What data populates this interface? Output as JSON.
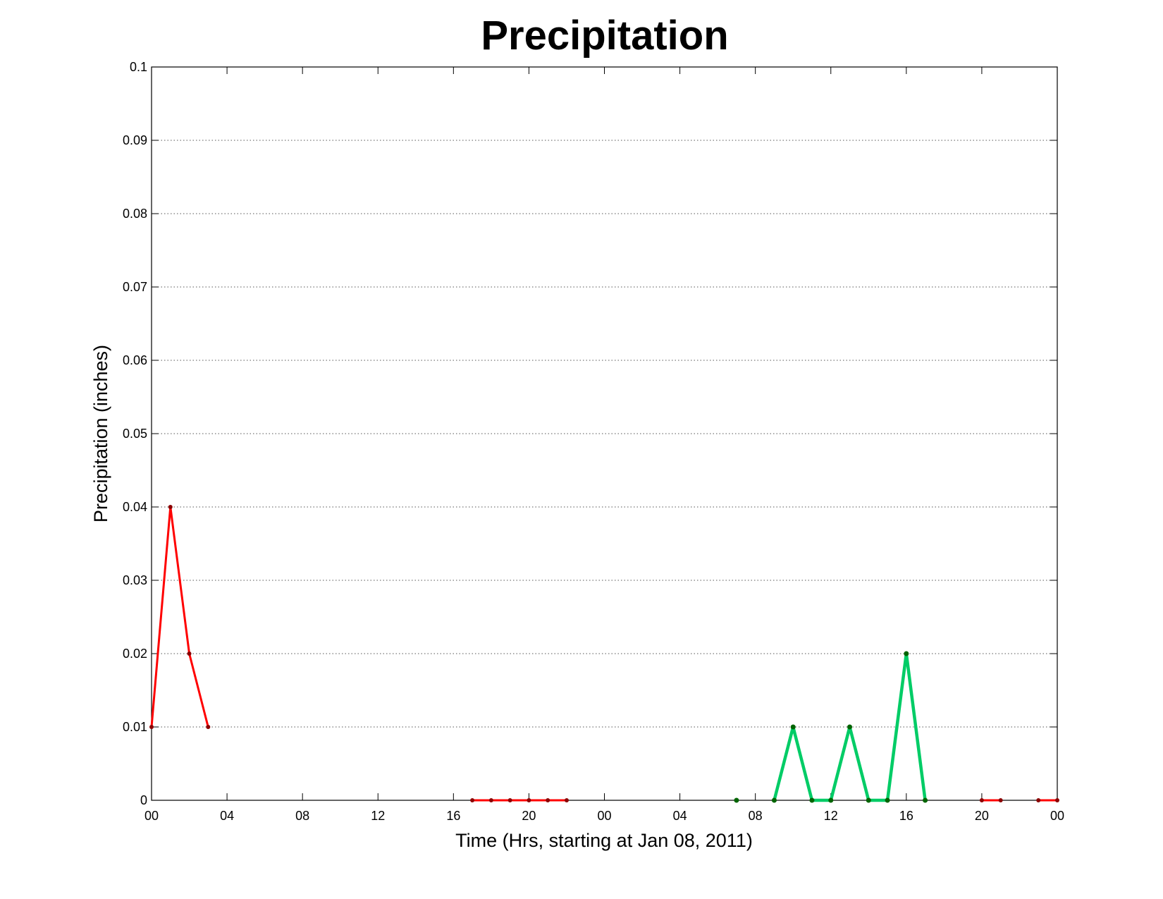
{
  "chart_data": {
    "type": "line",
    "title": "Precipitation",
    "xlabel": "Time (Hrs, starting at Jan 08, 2011)",
    "ylabel": "Precipitation (inches)",
    "xlim": [
      0,
      48
    ],
    "ylim": [
      0,
      0.1
    ],
    "x_ticks": [
      0,
      4,
      8,
      12,
      16,
      20,
      24,
      28,
      32,
      36,
      40,
      44,
      48
    ],
    "x_tick_labels": [
      "00",
      "04",
      "08",
      "12",
      "16",
      "20",
      "00",
      "04",
      "08",
      "12",
      "16",
      "20",
      "00"
    ],
    "y_ticks": [
      0,
      0.01,
      0.02,
      0.03,
      0.04,
      0.05,
      0.06,
      0.07,
      0.08,
      0.09,
      0.1
    ],
    "y_tick_labels": [
      "0",
      "0.01",
      "0.02",
      "0.03",
      "0.04",
      "0.05",
      "0.06",
      "0.07",
      "0.08",
      "0.09",
      "0.1"
    ],
    "grid": "horizontal dotted",
    "colors": {
      "red_line": "#ff0000",
      "red_marker": "#8b0000",
      "green_line": "#00cc66",
      "green_marker": "#006400"
    },
    "series": [
      {
        "color": "red",
        "x": [
          0,
          1,
          2,
          3
        ],
        "values": [
          0.01,
          0.04,
          0.02,
          0.01
        ]
      },
      {
        "color": "red",
        "x": [
          17,
          18,
          19,
          20,
          21,
          22
        ],
        "values": [
          0,
          0,
          0,
          0,
          0,
          0
        ]
      },
      {
        "color": "green",
        "x": [
          31
        ],
        "values": [
          0
        ]
      },
      {
        "color": "green",
        "x": [
          33,
          34,
          35,
          36,
          37,
          38,
          39,
          40,
          41
        ],
        "values": [
          0,
          0.01,
          0,
          0,
          0.01,
          0,
          0,
          0.02,
          0
        ]
      },
      {
        "color": "red",
        "x": [
          44,
          45
        ],
        "values": [
          0,
          0
        ]
      },
      {
        "color": "red",
        "x": [
          47,
          48
        ],
        "values": [
          0,
          0
        ]
      }
    ]
  }
}
